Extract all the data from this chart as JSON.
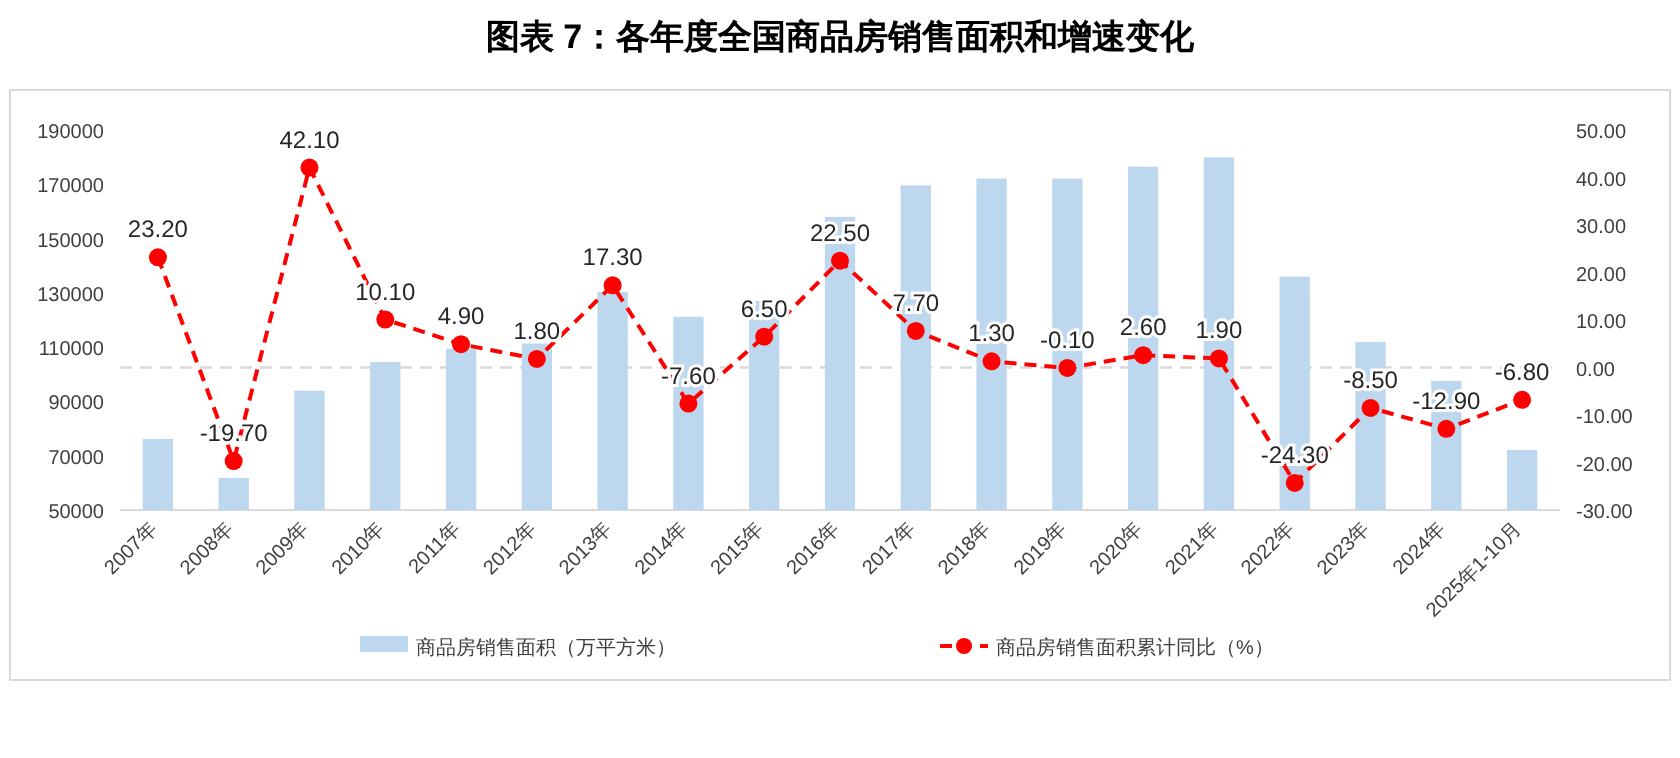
{
  "chart_data": {
    "type": "bar",
    "title": "图表 7：各年度全国商品房销售面积和增速变化",
    "categories": [
      "2007年",
      "2008年",
      "2009年",
      "2010年",
      "2011年",
      "2012年",
      "2013年",
      "2014年",
      "2015年",
      "2016年",
      "2017年",
      "2018年",
      "2019年",
      "2020年",
      "2021年",
      "2022年",
      "2023年",
      "2024年",
      "2025年1-10月"
    ],
    "series": [
      {
        "name": "商品房销售面积（万平方米）",
        "color": "#bdd7ee",
        "values": [
          76200,
          61800,
          94000,
          104500,
          109400,
          111300,
          130300,
          121200,
          127000,
          158000,
          169600,
          172100,
          172100,
          176500,
          179900,
          136000,
          111900,
          97600,
          72100
        ]
      },
      {
        "name": "商品房销售面积累计同比（%）",
        "type": "line",
        "axis": "y2",
        "color": "#ff0000",
        "marker": "circle",
        "line_style": "dashed",
        "values": [
          23.2,
          -19.7,
          42.1,
          10.1,
          4.9,
          1.8,
          17.3,
          -7.6,
          6.5,
          22.5,
          7.7,
          1.3,
          -0.1,
          2.6,
          1.9,
          -24.3,
          -8.5,
          -12.9,
          -6.8
        ],
        "value_labels": [
          "23.20",
          "-19.70",
          "42.10",
          "10.10",
          "4.90",
          "1.80",
          "17.30",
          "-7.60",
          "6.50",
          "22.50",
          "7.70",
          "1.30",
          "-0.10",
          "2.60",
          "1.90",
          "-24.30",
          "-8.50",
          "-12.90",
          "-6.80"
        ]
      }
    ],
    "ylim": [
      50000,
      190000
    ],
    "yticks": [
      50000,
      70000,
      90000,
      110000,
      130000,
      150000,
      170000,
      190000
    ],
    "y2lim": [
      -30,
      50
    ],
    "y2ticks": [
      {
        "value": -30,
        "label": "-30.00"
      },
      {
        "value": -20,
        "label": "-20.00"
      },
      {
        "value": -10,
        "label": "-10.00"
      },
      {
        "value": 0,
        "label": "0.00"
      },
      {
        "value": 10,
        "label": "10.00"
      },
      {
        "value": 20,
        "label": "20.00"
      },
      {
        "value": 30,
        "label": "30.00"
      },
      {
        "value": 40,
        "label": "40.00"
      },
      {
        "value": 50,
        "label": "50.00"
      }
    ],
    "ref_lines": [
      {
        "axis": "y2",
        "value": 0,
        "color": "#d9d9d9",
        "line_style": "dashed"
      }
    ],
    "grid": false,
    "legend": "bottom"
  }
}
